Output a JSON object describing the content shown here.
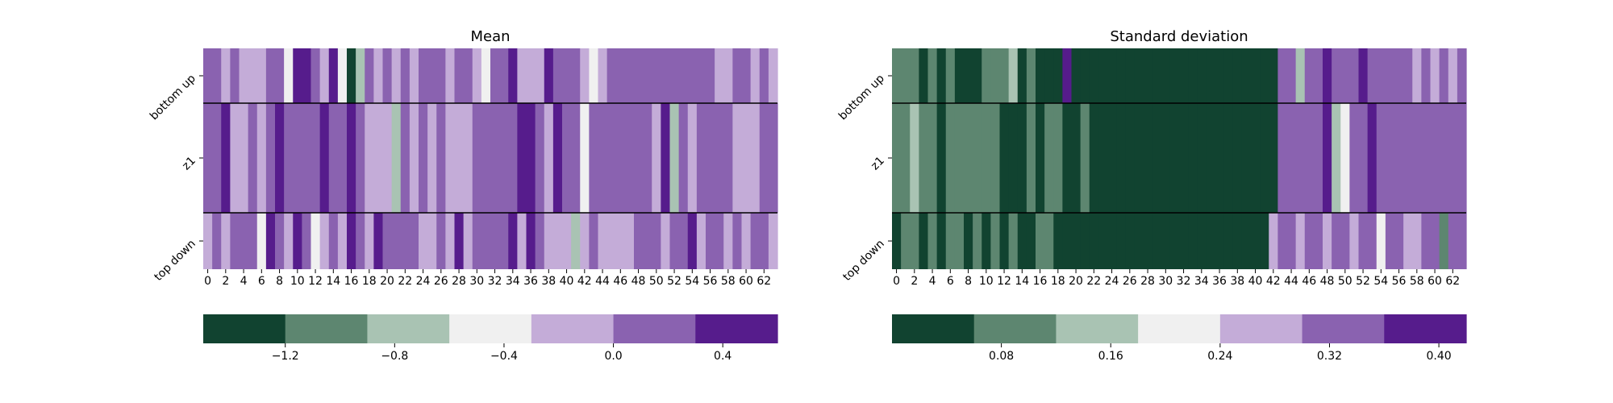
{
  "palette": {
    "0": "#114330",
    "1": "#5d8670",
    "2": "#a9c3b3",
    "3": "#f0f0f0",
    "4": "#c4acd8",
    "5": "#8a62b0",
    "6": "#561c8c"
  },
  "chart_data": [
    {
      "type": "heatmap",
      "title": "Mean",
      "ylabels": [
        "bottom up",
        "z1",
        "top down"
      ],
      "xticks": [
        "0",
        "2",
        "4",
        "6",
        "8",
        "10",
        "12",
        "14",
        "16",
        "18",
        "20",
        "22",
        "24",
        "26",
        "28",
        "30",
        "32",
        "34",
        "36",
        "38",
        "40",
        "42",
        "44",
        "46",
        "48",
        "50",
        "52",
        "54",
        "56",
        "58",
        "60",
        "62"
      ],
      "matrix_color_index": [
        [
          5,
          5,
          4,
          5,
          4,
          4,
          4,
          5,
          5,
          3,
          6,
          6,
          5,
          4,
          6,
          3,
          0,
          2,
          5,
          4,
          5,
          4,
          5,
          4,
          5,
          5,
          5,
          4,
          5,
          5,
          4,
          3,
          5,
          5,
          6,
          4,
          4,
          4,
          6,
          5,
          5,
          5,
          4,
          3,
          4,
          5,
          5,
          5,
          5,
          5,
          5,
          5,
          5,
          5,
          5,
          5,
          5,
          4,
          4,
          5,
          5,
          4,
          5,
          4
        ],
        [
          5,
          5,
          6,
          4,
          4,
          5,
          4,
          5,
          6,
          5,
          5,
          5,
          5,
          6,
          5,
          5,
          6,
          5,
          4,
          4,
          4,
          2,
          5,
          4,
          5,
          4,
          5,
          4,
          4,
          4,
          5,
          5,
          5,
          5,
          5,
          6,
          6,
          5,
          4,
          6,
          5,
          5,
          3,
          5,
          5,
          5,
          5,
          5,
          5,
          5,
          4,
          6,
          2,
          5,
          4,
          5,
          5,
          5,
          5,
          4,
          4,
          4,
          5,
          5
        ],
        [
          4,
          5,
          4,
          5,
          5,
          5,
          3,
          6,
          5,
          4,
          6,
          5,
          3,
          4,
          5,
          4,
          6,
          5,
          4,
          6,
          5,
          5,
          5,
          5,
          4,
          4,
          5,
          4,
          6,
          4,
          5,
          5,
          5,
          5,
          6,
          4,
          6,
          5,
          4,
          4,
          4,
          2,
          4,
          5,
          4,
          4,
          4,
          4,
          5,
          5,
          5,
          4,
          5,
          5,
          6,
          4,
          5,
          5,
          4,
          5,
          4,
          5,
          5,
          4
        ]
      ],
      "colorbar": {
        "ticks": [
          "−1.2",
          "−0.8",
          "−0.4",
          "0.0",
          "0.4"
        ],
        "tick_values": [
          -1.2,
          -0.8,
          -0.4,
          0.0,
          0.4
        ],
        "range": [
          -1.5,
          0.6
        ]
      }
    },
    {
      "type": "heatmap",
      "title": "Standard deviation",
      "ylabels": [
        "bottom up",
        "z1",
        "top down"
      ],
      "xticks": [
        "0",
        "2",
        "4",
        "6",
        "8",
        "10",
        "12",
        "14",
        "16",
        "18",
        "20",
        "22",
        "24",
        "26",
        "28",
        "30",
        "32",
        "34",
        "36",
        "38",
        "40",
        "42",
        "44",
        "46",
        "48",
        "50",
        "52",
        "54",
        "56",
        "58",
        "60",
        "62"
      ],
      "matrix_color_index": [
        [
          1,
          1,
          1,
          0,
          1,
          0,
          1,
          0,
          0,
          0,
          1,
          1,
          1,
          2,
          0,
          1,
          0,
          0,
          0,
          6,
          0,
          0,
          0,
          0,
          0,
          0,
          0,
          0,
          0,
          0,
          0,
          0,
          0,
          0,
          0,
          0,
          0,
          0,
          0,
          0,
          0,
          0,
          0,
          5,
          5,
          2,
          5,
          5,
          6,
          5,
          5,
          5,
          6,
          5,
          5,
          5,
          5,
          5,
          4,
          5,
          4,
          5,
          4,
          5
        ],
        [
          1,
          1,
          2,
          1,
          1,
          0,
          1,
          1,
          1,
          1,
          1,
          1,
          0,
          0,
          0,
          1,
          0,
          1,
          1,
          0,
          0,
          1,
          0,
          0,
          0,
          0,
          0,
          0,
          0,
          0,
          0,
          0,
          0,
          0,
          0,
          0,
          0,
          0,
          0,
          0,
          0,
          0,
          0,
          5,
          5,
          5,
          5,
          5,
          6,
          2,
          3,
          5,
          5,
          6,
          5,
          5,
          5,
          5,
          5,
          5,
          5,
          5,
          5,
          5
        ],
        [
          0,
          1,
          1,
          0,
          1,
          0,
          1,
          1,
          0,
          1,
          0,
          1,
          0,
          1,
          0,
          0,
          1,
          1,
          0,
          0,
          0,
          0,
          0,
          0,
          0,
          0,
          0,
          0,
          0,
          0,
          0,
          0,
          0,
          0,
          0,
          0,
          0,
          0,
          0,
          0,
          0,
          0,
          4,
          5,
          5,
          4,
          5,
          5,
          4,
          5,
          5,
          4,
          5,
          5,
          3,
          5,
          5,
          4,
          4,
          5,
          5,
          1,
          5,
          5
        ]
      ],
      "colorbar": {
        "ticks": [
          "0.08",
          "0.16",
          "0.24",
          "0.32",
          "0.40"
        ],
        "tick_values": [
          0.08,
          0.16,
          0.24,
          0.32,
          0.4
        ],
        "range": [
          0.0,
          0.42
        ]
      }
    }
  ]
}
